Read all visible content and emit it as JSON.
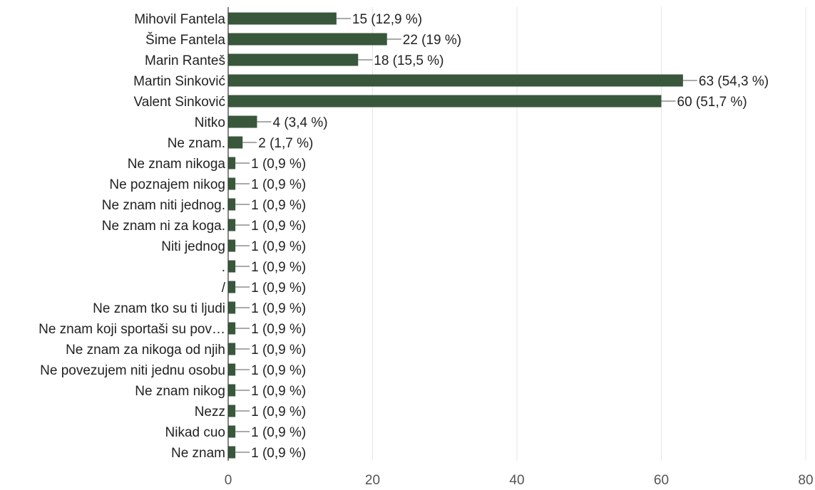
{
  "chart_data": {
    "type": "bar",
    "orientation": "horizontal",
    "categories": [
      "Mihovil Fantela",
      "Šime Fantela",
      "Marin Ranteš",
      "Martin Sinković",
      "Valent Sinković",
      "Nitko",
      "Ne znam.",
      "Ne znam nikoga",
      "Ne poznajem nikog",
      "Ne znam niti jednog.",
      "Ne znam ni za koga.",
      "Niti jednog",
      ".",
      "/",
      "Ne znam tko su ti ljudi",
      "Ne znam koji sportaši su pov…",
      "Ne znam za nikoga od njih",
      "Ne povezujem niti jednu osobu",
      "Ne znam nikog",
      "Nezz",
      "Nikad cuo",
      "Ne znam"
    ],
    "values": [
      15,
      22,
      18,
      63,
      60,
      4,
      2,
      1,
      1,
      1,
      1,
      1,
      1,
      1,
      1,
      1,
      1,
      1,
      1,
      1,
      1,
      1
    ],
    "value_labels": [
      "15 (12,9 %)",
      "22 (19 %)",
      "18 (15,5 %)",
      "63 (54,3 %)",
      "60 (51,7 %)",
      "4 (3,4 %)",
      "2 (1,7 %)",
      "1 (0,9 %)",
      "1 (0,9 %)",
      "1 (0,9 %)",
      "1 (0,9 %)",
      "1 (0,9 %)",
      "1 (0,9 %)",
      "1 (0,9 %)",
      "1 (0,9 %)",
      "1 (0,9 %)",
      "1 (0,9 %)",
      "1 (0,9 %)",
      "1 (0,9 %)",
      "1 (0,9 %)",
      "1 (0,9 %)",
      "1 (0,9 %)"
    ],
    "xlim": [
      0,
      80
    ],
    "xticks": [
      0,
      20,
      40,
      60,
      80
    ],
    "grid": true,
    "bar_color": "#38573b",
    "grid_color": "#e6e6e6",
    "axis_color": "#333333",
    "text_color": "#222222"
  }
}
